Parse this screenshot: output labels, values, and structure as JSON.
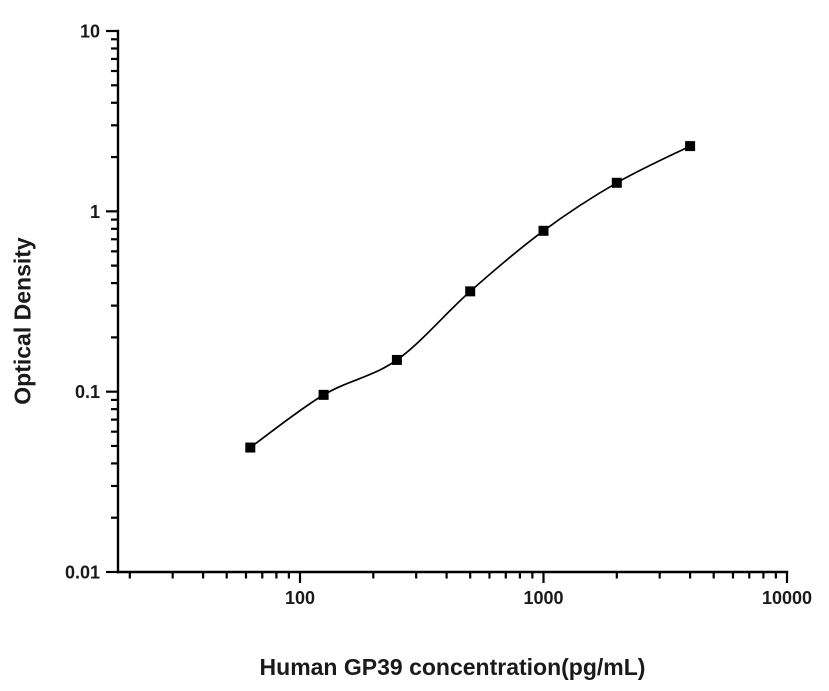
{
  "figure": {
    "background_color": "#ffffff",
    "axis_color": "#000000",
    "text_color": "#1a1a1a"
  },
  "chart_data": {
    "type": "scatter",
    "title": "",
    "xlabel": "Human GP39 concentration(pg/mL)",
    "ylabel": "Optical Density",
    "xscale": "log",
    "yscale": "log",
    "xlim": [
      18,
      10000
    ],
    "ylim": [
      0.01,
      10
    ],
    "x": [
      62.5,
      125,
      250,
      500,
      1000,
      2000,
      4000
    ],
    "y": [
      0.049,
      0.096,
      0.15,
      0.36,
      0.78,
      1.44,
      2.3
    ],
    "x_major_ticks": {
      "values": [
        100,
        1000,
        10000
      ],
      "labels": [
        "100",
        "1000",
        "10000"
      ]
    },
    "y_major_ticks": {
      "values": [
        10,
        1,
        0.1,
        0.01
      ],
      "labels": [
        "10",
        "1",
        "0.1",
        "0.01"
      ]
    },
    "marker": "filled-square",
    "marker_color": "#000000",
    "line_style": "smooth-curve-through-points",
    "line_color": "#000000",
    "grid": false,
    "legend": "none"
  }
}
